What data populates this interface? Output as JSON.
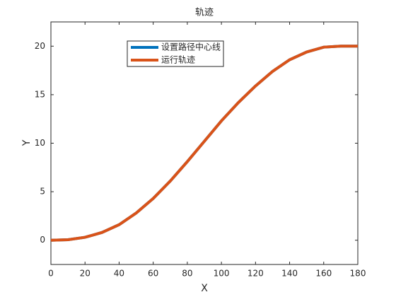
{
  "chart_data": {
    "type": "line",
    "title": "轨迹",
    "xlabel": "X",
    "ylabel": "Y",
    "x": [
      0,
      10,
      20,
      30,
      40,
      50,
      60,
      70,
      80,
      90,
      100,
      110,
      120,
      130,
      140,
      150,
      160,
      170,
      180
    ],
    "series": [
      {
        "name": "设置路径中心线",
        "color": "#0072bd",
        "values": [
          0,
          0.05,
          0.3,
          0.8,
          1.6,
          2.8,
          4.3,
          6.1,
          8.1,
          10.2,
          12.3,
          14.2,
          15.9,
          17.4,
          18.6,
          19.4,
          19.9,
          20,
          20
        ]
      },
      {
        "name": "运行轨迹",
        "color": "#d95319",
        "values": [
          0,
          0.05,
          0.3,
          0.8,
          1.6,
          2.8,
          4.3,
          6.1,
          8.1,
          10.2,
          12.3,
          14.2,
          15.9,
          17.4,
          18.6,
          19.4,
          19.9,
          20,
          20
        ]
      }
    ],
    "xlim": [
      0,
      180
    ],
    "xticks": [
      0,
      20,
      40,
      60,
      80,
      100,
      120,
      140,
      160,
      180
    ],
    "ylim": [
      -2.5,
      22.5
    ],
    "yticks": [
      0,
      5,
      10,
      15,
      20
    ],
    "legend": "top-left"
  }
}
